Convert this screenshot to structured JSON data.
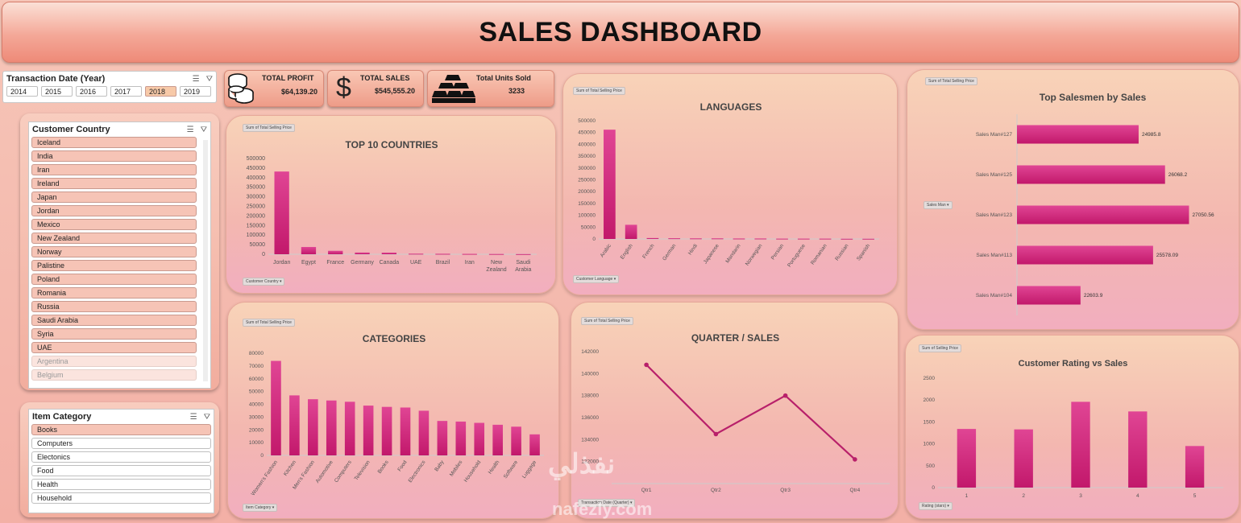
{
  "title": "SALES DASHBOARD",
  "year_slicer": {
    "title": "Transaction Date (Year)",
    "years": [
      "2014",
      "2015",
      "2016",
      "2017",
      "2018",
      "2019"
    ],
    "selected": "2018"
  },
  "kpis": {
    "profit": {
      "label": "TOTAL PROFIT",
      "value": "$64,139.20"
    },
    "sales": {
      "label": "TOTAL SALES",
      "value": "$545,555.20"
    },
    "units": {
      "label": "Total Units Sold",
      "value": "3233"
    }
  },
  "country_slicer": {
    "title": "Customer Country",
    "items": [
      "Iceland",
      "India",
      "Iran",
      "Ireland",
      "Japan",
      "Jordan",
      "Mexico",
      "New Zealand",
      "Norway",
      "Palistine",
      "Poland",
      "Romania",
      "Russia",
      "Saudi Arabia",
      "Syria",
      "UAE"
    ],
    "dim_items": [
      "Argentina",
      "Belgium"
    ]
  },
  "category_slicer": {
    "title": "Item Category",
    "items": [
      "Books",
      "Computers",
      "Electonics",
      "Food",
      "Health",
      "Household"
    ],
    "selected": "Books"
  },
  "field_buttons": {
    "top10_value": "Sum of Total Selling Price",
    "top10_axis": "Customer Country",
    "lang_value": "Sum of Total Selling Price",
    "lang_axis": "Customer Language",
    "cat_value": "Sum of Total Selling Price",
    "cat_axis": "Item Category",
    "quarter_value": "Sum of Total Selling Price",
    "quarter_axis": "Transaction Date (Quarter)",
    "salesmen_value": "Sum of Total Selling Price",
    "salesmen_axis": "Sales Man",
    "rating_value": "Sum of Selling Price",
    "rating_axis": "Rating (stars)"
  },
  "watermark": {
    "arabic": "نفذلي",
    "latin": "nafezly.com"
  },
  "chart_data": [
    {
      "id": "top10",
      "type": "bar",
      "title": "TOP 10 COUNTRIES",
      "categories": [
        "Jordan",
        "Egypt",
        "France",
        "Germany",
        "Canada",
        "UAE",
        "Brazil",
        "Iran",
        "New Zealand",
        "Saudi Arabia"
      ],
      "values": [
        432000,
        38000,
        18000,
        9000,
        8500,
        3000,
        2500,
        2000,
        1500,
        1000
      ],
      "ylim": [
        0,
        500000
      ],
      "yticks": [
        0,
        50000,
        100000,
        150000,
        200000,
        250000,
        300000,
        350000,
        400000,
        450000,
        500000
      ]
    },
    {
      "id": "languages",
      "type": "bar",
      "title": "LANGUAGES",
      "categories": [
        "Arabic",
        "English",
        "French",
        "German",
        "Hindi",
        "Japanese",
        "Mandarin",
        "Norwegian",
        "Persian",
        "Portuguese",
        "Romanian",
        "Russian",
        "Spanish"
      ],
      "values": [
        462000,
        60000,
        4000,
        3000,
        2500,
        2500,
        2000,
        2000,
        1500,
        1500,
        1500,
        1000,
        1000
      ],
      "ylim": [
        0,
        500000
      ],
      "yticks": [
        0,
        50000,
        100000,
        150000,
        200000,
        250000,
        300000,
        350000,
        400000,
        450000,
        500000
      ]
    },
    {
      "id": "categories",
      "type": "bar",
      "title": "CATEGORIES",
      "categories": [
        "Women's Fashion",
        "Kitchen",
        "Men's Fashion",
        "Automotive",
        "Computers",
        "Television",
        "Books",
        "Food",
        "Electronics",
        "Baby",
        "Mobiles",
        "Household",
        "Health",
        "Software",
        "Luggage"
      ],
      "values": [
        74000,
        47000,
        44000,
        43000,
        42000,
        39000,
        38000,
        37500,
        35000,
        27000,
        26500,
        25500,
        24000,
        22500,
        16500
      ],
      "ylim": [
        0,
        80000
      ],
      "yticks": [
        0,
        10000,
        20000,
        30000,
        40000,
        50000,
        60000,
        70000,
        80000
      ]
    },
    {
      "id": "quarter",
      "type": "line",
      "title": "QUARTER / SALES",
      "categories": [
        "Qtr1",
        "Qtr2",
        "Qtr3",
        "Qtr4"
      ],
      "values": [
        140800,
        134500,
        138000,
        132200
      ],
      "ylim": [
        130000,
        142000
      ],
      "yticks": [
        132000,
        134000,
        136000,
        138000,
        140000,
        142000
      ]
    },
    {
      "id": "salesmen",
      "type": "bar",
      "orientation": "horizontal",
      "title": "Top Salesmen by Sales",
      "categories": [
        "Sales Man#127",
        "Sales Man#125",
        "Sales Man#123",
        "Sales Man#113",
        "Sales Man#104"
      ],
      "values": [
        24985.8,
        26068.2,
        27050.56,
        25578.09,
        22603.9
      ],
      "labels": [
        "24985.8",
        "26068.2",
        "27050.56",
        "25578.09",
        "22603.9"
      ],
      "xlim": [
        20000,
        27200
      ]
    },
    {
      "id": "rating",
      "type": "bar",
      "title": "Customer Rating vs Sales",
      "categories": [
        "1",
        "2",
        "3",
        "4",
        "5"
      ],
      "values": [
        1340,
        1330,
        1960,
        1740,
        950
      ],
      "ylim": [
        0,
        2500
      ],
      "yticks": [
        0,
        500,
        1000,
        1500,
        2000,
        2500
      ]
    }
  ],
  "colors": {
    "bar": "#c2186b",
    "bar_light": "#e04594",
    "line": "#b8206a"
  }
}
